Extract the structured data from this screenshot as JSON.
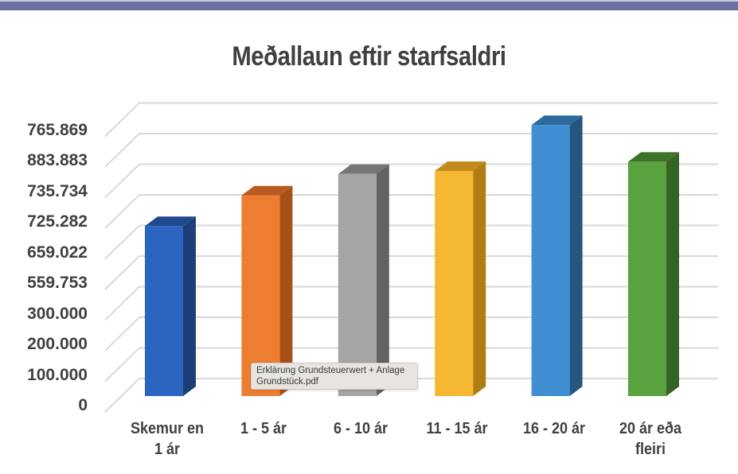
{
  "title": "Meðallaun eftir starfsaldri",
  "tooltip": {
    "line1": "Erklärung Grundsteuerwert + Anlage",
    "line2": "Grundstück.pdf"
  },
  "chart_data": {
    "type": "bar",
    "style": "3d-column",
    "title": "Meðallaun eftir starfsaldri",
    "xlabel": "",
    "ylabel": "",
    "categories": [
      "Skemur en 1 ár",
      "1 - 5 ár",
      "6 - 10 ár",
      "11 - 15 ár",
      "16 - 20 ár",
      "20 ár eða fleiri"
    ],
    "category_lines": [
      [
        "Skemur en",
        "1 ár"
      ],
      [
        "1 - 5 ár"
      ],
      [
        "6 - 10 ár"
      ],
      [
        "11 - 15 ár"
      ],
      [
        "16 - 20 ár"
      ],
      [
        "20 ár eða",
        "fleiri"
      ]
    ],
    "y_tick_labels": [
      "0",
      "100.000",
      "200.000",
      "300.000",
      "559.753",
      "659.022",
      "725.282",
      "735.734",
      "883.883",
      "765.869"
    ],
    "values_by_tick_position": [
      5.5,
      6.5,
      7.2,
      7.3,
      8.8,
      7.6
    ],
    "values": [
      725282,
      735734,
      883883,
      883883,
      765869,
      883883
    ],
    "colors": [
      "#2a66c1",
      "#ed7d31",
      "#a5a5a5",
      "#f4b731",
      "#3f8fd2",
      "#5aa23d"
    ],
    "side_colors": [
      "#1d3f78",
      "#a84f18",
      "#626262",
      "#b07d14",
      "#24567f",
      "#346424"
    ],
    "top_colors": [
      "#1f4a8f",
      "#b95a1e",
      "#767676",
      "#c48b1c",
      "#2c6a9e",
      "#3e7229"
    ],
    "grid": true,
    "legend": "none",
    "note": "Y-axis tick labels are non-monotonic as displayed; bar heights are measured against the evenly spaced gridlines (tick index 0-9)."
  }
}
